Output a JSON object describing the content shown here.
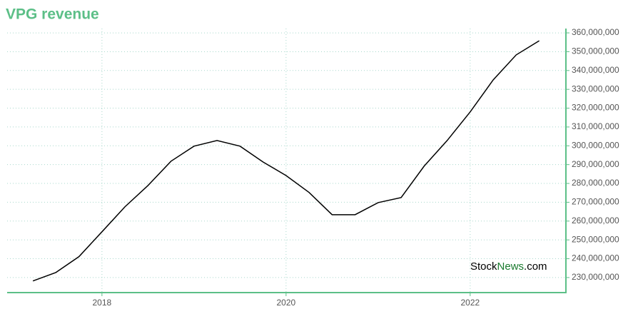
{
  "chart_data": {
    "type": "line",
    "title": "VPG revenue",
    "x": [
      2017.25,
      2017.5,
      2017.75,
      2018,
      2018.25,
      2018.5,
      2018.75,
      2019,
      2019.25,
      2019.5,
      2019.75,
      2020,
      2020.25,
      2020.5,
      2020.75,
      2021,
      2021.25,
      2021.5,
      2021.75,
      2022,
      2022.25,
      2022.5,
      2022.75
    ],
    "series": [
      {
        "name": "VPG revenue",
        "color": "#000000",
        "values": [
          228200000,
          232700000,
          241100000,
          254300000,
          267600000,
          278900000,
          291800000,
          299800000,
          302800000,
          299800000,
          291400000,
          284200000,
          275200000,
          263400000,
          263400000,
          269800000,
          272500000,
          289200000,
          302800000,
          318000000,
          335000000,
          348300000,
          355800000
        ]
      }
    ],
    "xlim": [
      2016.97,
      2023.04
    ],
    "xticks": [
      2018,
      2020,
      2022
    ],
    "ylim": [
      222000000,
      362300000
    ],
    "yticks": [
      {
        "value": 230000000,
        "label": "230,000,000"
      },
      {
        "value": 240000000,
        "label": "240,000,000"
      },
      {
        "value": 250000000,
        "label": "250,000,000"
      },
      {
        "value": 260000000,
        "label": "260,000,000"
      },
      {
        "value": 270000000,
        "label": "270,000,000"
      },
      {
        "value": 280000000,
        "label": "280,000,000"
      },
      {
        "value": 290000000,
        "label": "290,000,000"
      },
      {
        "value": 300000000,
        "label": "300,000,000"
      },
      {
        "value": 310000000,
        "label": "310,000,000"
      },
      {
        "value": 320000000,
        "label": "320,000,000"
      },
      {
        "value": 330000000,
        "label": "330,000,000"
      },
      {
        "value": 340000000,
        "label": "340,000,000"
      },
      {
        "value": 350000000,
        "label": "350,000,000"
      },
      {
        "value": 360000000,
        "label": "360,000,000"
      }
    ],
    "grid": true,
    "watermark": [
      "Stock",
      "News",
      ".com"
    ]
  }
}
